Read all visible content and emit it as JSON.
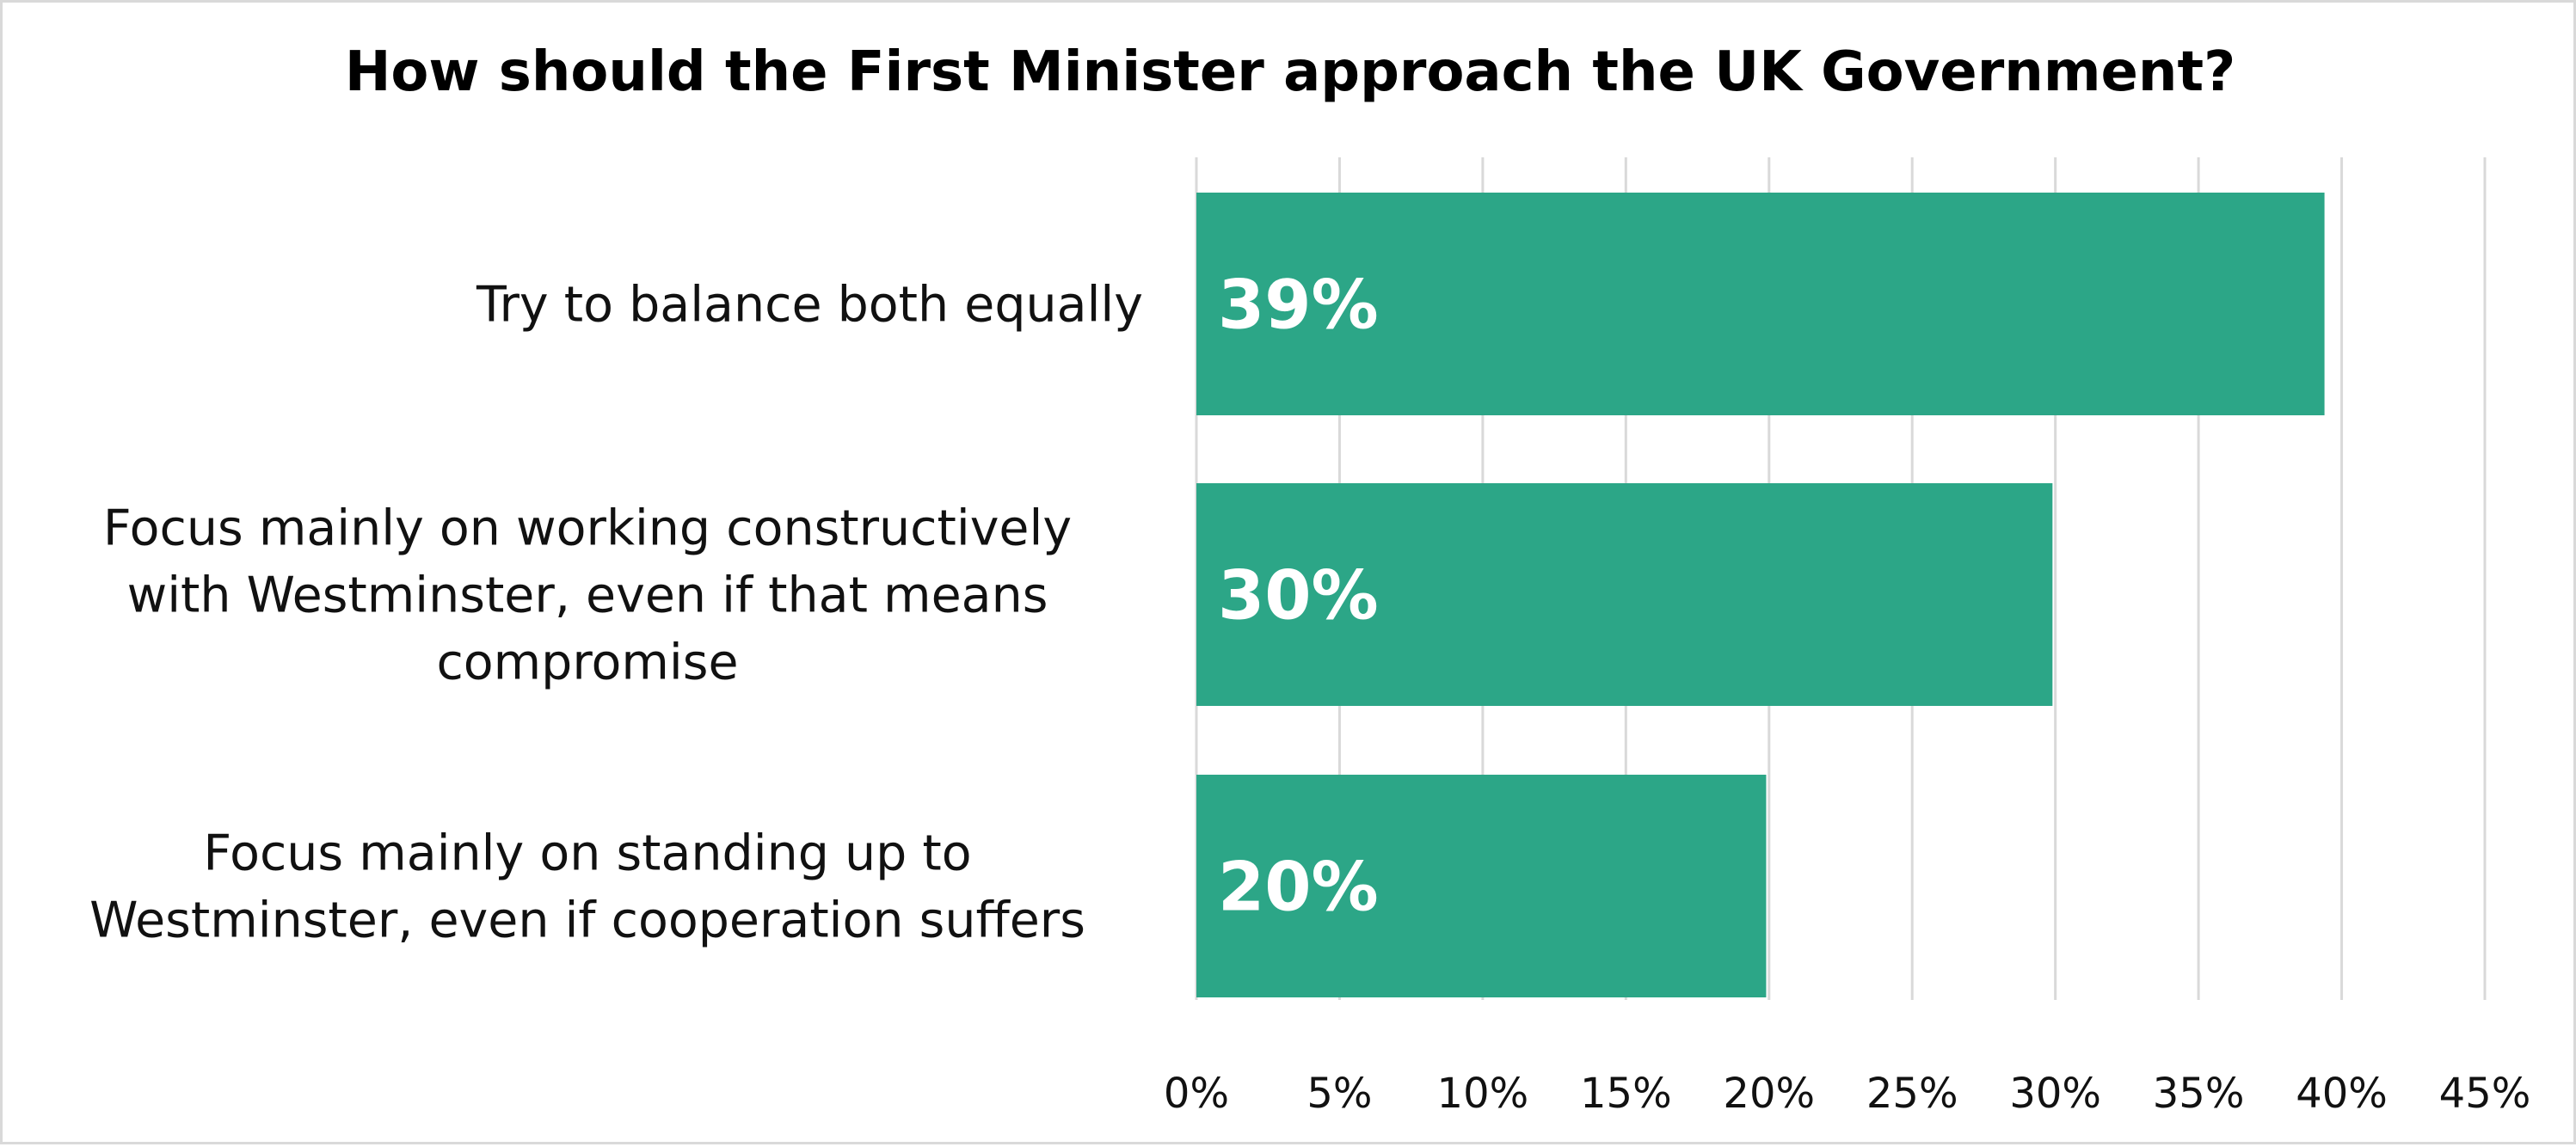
{
  "chart_data": {
    "type": "bar",
    "orientation": "horizontal",
    "title": "How should the First Minister approach the UK Government?",
    "categories": [
      [
        "Try to balance both equally"
      ],
      [
        "Focus mainly on working constructively",
        "with Westminster, even if that means",
        "compromise"
      ],
      [
        "Focus mainly on standing up to",
        "Westminster, even if cooperation suffers"
      ]
    ],
    "values": [
      39.4,
      29.9,
      19.9
    ],
    "data_labels": [
      "39%",
      "30%",
      "20%"
    ],
    "xlim": [
      0,
      45
    ],
    "ticks": [
      0,
      5,
      10,
      15,
      20,
      25,
      30,
      35,
      40,
      45
    ],
    "tick_labels": [
      "0%",
      "5%",
      "10%",
      "15%",
      "20%",
      "25%",
      "30%",
      "35%",
      "40%",
      "45%"
    ],
    "xlabel": "",
    "ylabel": "",
    "grid": true,
    "legend": "none",
    "bar_color": "#2ca687"
  }
}
